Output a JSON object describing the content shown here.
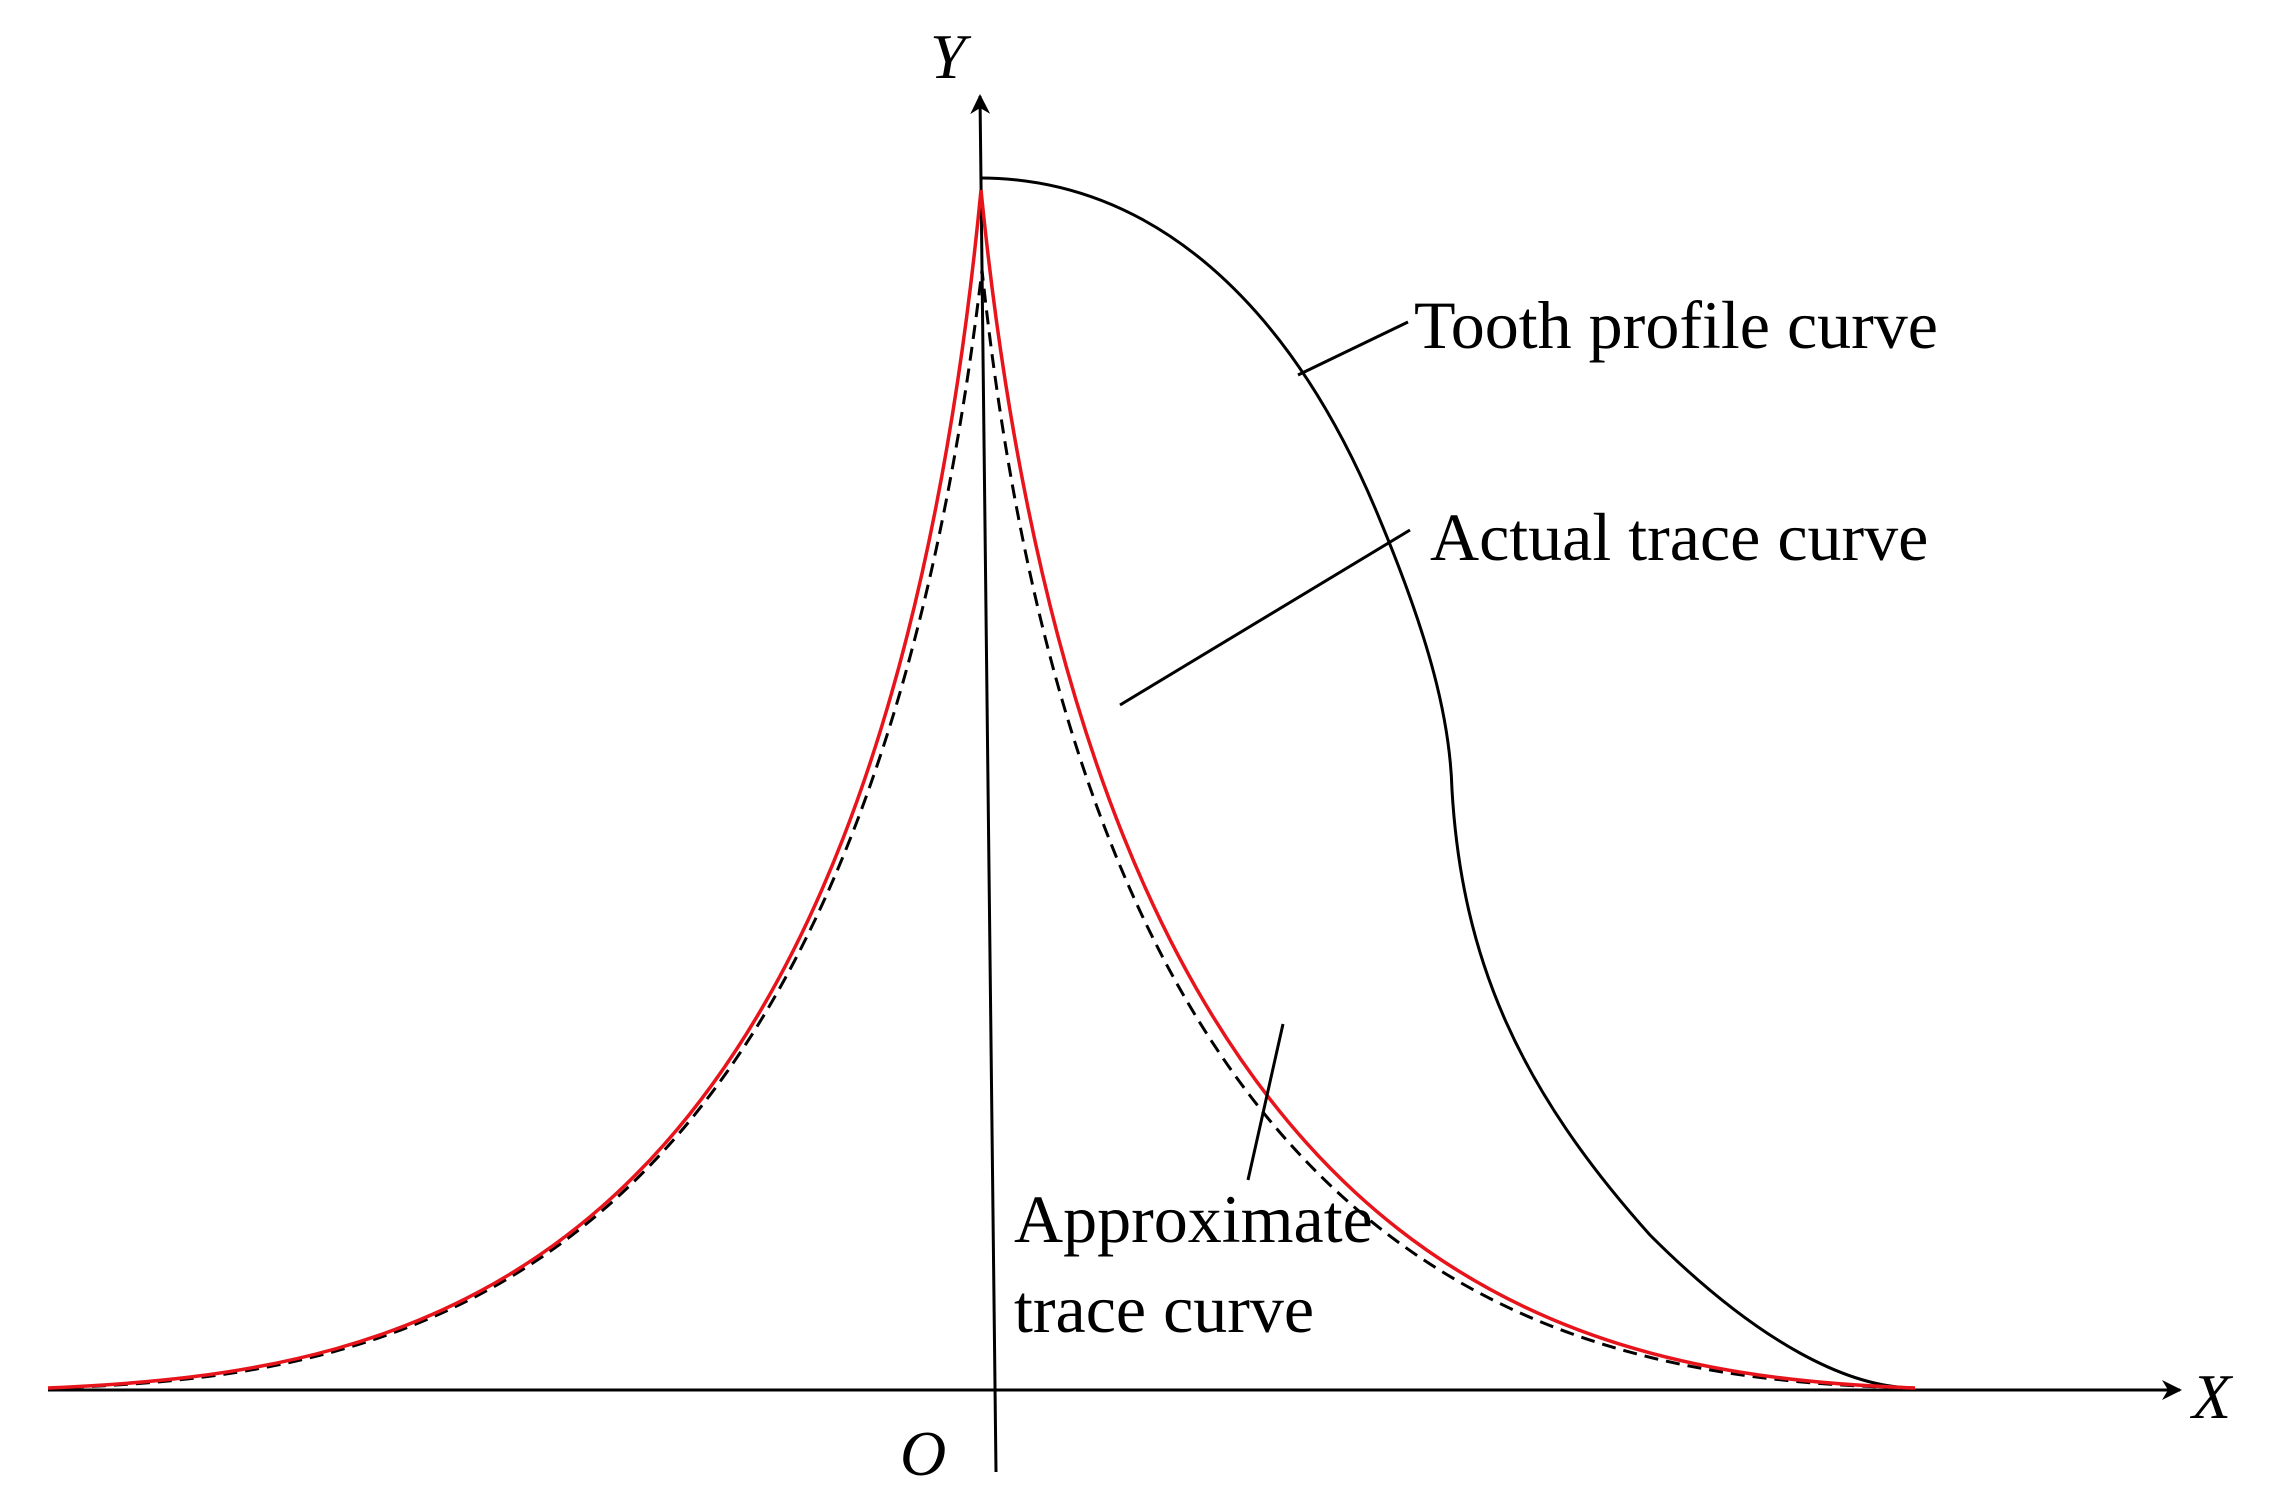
{
  "axes": {
    "x_label": "X",
    "y_label": "Y",
    "origin_label": "O"
  },
  "labels": {
    "tooth_profile": "Tooth profile curve",
    "actual_trace": "Actual trace curve",
    "approximate_trace_line1": "Approximate",
    "approximate_trace_line2": "trace curve"
  },
  "colors": {
    "actual_trace": "#e8141b",
    "approximate_trace": "#000000",
    "tooth_profile": "#000000",
    "axes": "#000000"
  },
  "line_styles": {
    "actual_trace": "solid",
    "approximate_trace": "dashed",
    "tooth_profile": "solid"
  }
}
